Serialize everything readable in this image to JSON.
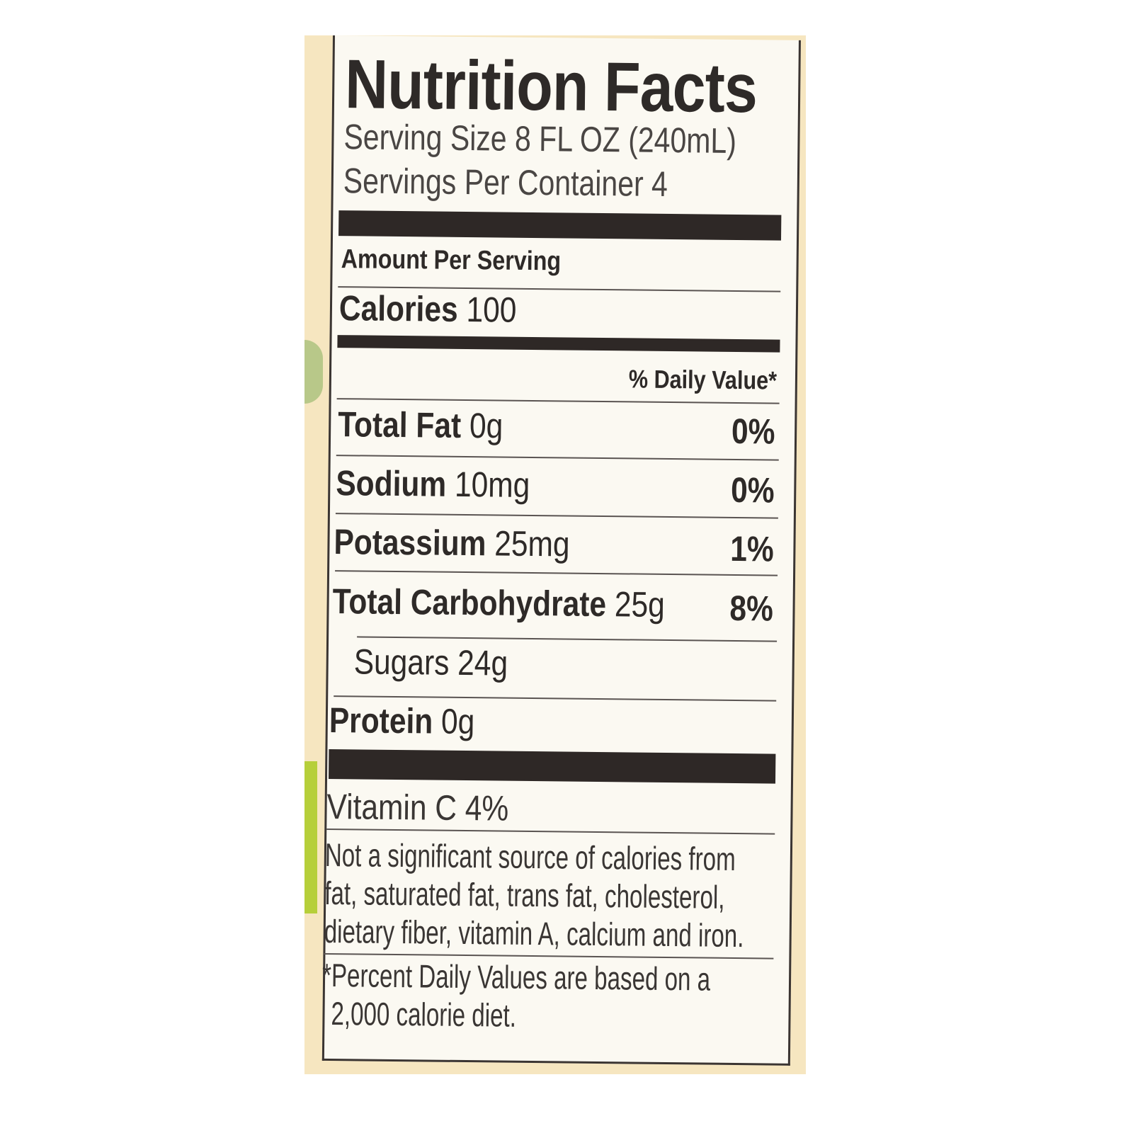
{
  "label": {
    "title": "Nutrition Facts",
    "serving_size": "Serving Size 8 FL OZ (240mL)",
    "servings_per_container": "Servings Per Container 4",
    "amount_per_serving": "Amount Per Serving",
    "calories_label": "Calories",
    "calories_value": "100",
    "daily_value_header": "% Daily Value*",
    "nutrients": [
      {
        "name": "Total Fat",
        "amount": "0g",
        "dv": "0%"
      },
      {
        "name": "Sodium",
        "amount": "10mg",
        "dv": "0%"
      },
      {
        "name": "Potassium",
        "amount": "25mg",
        "dv": "1%"
      },
      {
        "name": "Total Carbohydrate",
        "amount": "25g",
        "dv": "8%"
      },
      {
        "name": "Sugars",
        "amount": "24g",
        "dv": ""
      },
      {
        "name": "Protein",
        "amount": "0g",
        "dv": ""
      }
    ],
    "vitamin_c": "Vitamin C 4%",
    "footnote_lines": [
      "Not a significant source of calories from",
      "fat, saturated fat, trans fat, cholesterol,",
      "dietary fiber, vitamin A, calcium and iron."
    ],
    "percent_note_lines": [
      "*Percent Daily Values are based on a",
      " 2,000 calorie diet."
    ]
  },
  "colors": {
    "ink": "#2e2a28",
    "paper": "#f6e6c0",
    "label_bg": "#fbf9f2",
    "accent_green": "#b6cf3a"
  }
}
